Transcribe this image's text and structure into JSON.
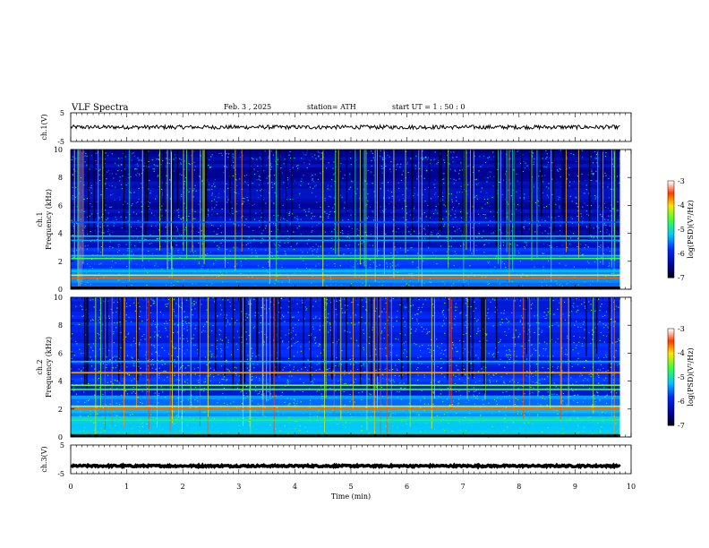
{
  "header": {
    "title": "VLF  Spectra",
    "date": "Feb. 3  , 2025",
    "station": "station= ATH",
    "start": "start  UT  =   1 : 50 : 0"
  },
  "chart_data": [
    {
      "type": "line",
      "name": "ch1-waveform",
      "ylabel": "ch.1(V)",
      "ylim": [
        -5,
        5
      ],
      "yticks": [
        "5",
        "-5"
      ],
      "xlim": [
        0,
        10
      ],
      "approx_level": 0.0,
      "x_end": 9.8
    },
    {
      "type": "heatmap",
      "name": "ch1-spectrogram",
      "ylabel": "ch.1\nFrequency  (kHz)",
      "ylim": [
        0,
        10
      ],
      "yticks": [
        "0",
        "2",
        "4",
        "6",
        "8",
        "10"
      ],
      "xlim": [
        0,
        10
      ],
      "x_end": 9.8,
      "colorbar": {
        "label": "log(PSD)(V²/Hz)",
        "range": [
          -7,
          -3
        ],
        "ticks": [
          "-3",
          "-4",
          "-5",
          "-6",
          "-7"
        ]
      },
      "bands_khz": [
        {
          "freq": 0.8,
          "level": -3.6
        },
        {
          "freq": 1.0,
          "level": -4.0
        },
        {
          "freq": 1.3,
          "level": -5.2
        },
        {
          "freq": 2.2,
          "level": -4.6
        },
        {
          "freq": 2.4,
          "level": -5.0
        },
        {
          "freq": 3.5,
          "level": -5.3
        },
        {
          "freq": 3.8,
          "level": -5.0
        },
        {
          "freq": 4.8,
          "level": -5.6
        }
      ]
    },
    {
      "type": "heatmap",
      "name": "ch2-spectrogram",
      "ylabel": "ch.2\nFrequency  (kHz)",
      "ylim": [
        0,
        10
      ],
      "yticks": [
        "0",
        "2",
        "4",
        "6",
        "8",
        "10"
      ],
      "xlim": [
        0,
        10
      ],
      "x_end": 9.8,
      "colorbar": {
        "label": "log(PSD)(V²/Hz)",
        "range": [
          -7,
          -3
        ],
        "ticks": [
          "-3",
          "-4",
          "-5",
          "-6",
          "-7"
        ]
      },
      "bands_khz": [
        {
          "freq": 1.2,
          "level": -4.8
        },
        {
          "freq": 2.0,
          "level": -3.6
        },
        {
          "freq": 2.2,
          "level": -4.0
        },
        {
          "freq": 3.4,
          "level": -4.6
        },
        {
          "freq": 3.7,
          "level": -4.4
        },
        {
          "freq": 4.6,
          "level": -3.8
        },
        {
          "freq": 5.4,
          "level": -5.2
        }
      ]
    },
    {
      "type": "line",
      "name": "ch3-waveform",
      "ylabel": "ch.3(V)",
      "ylim": [
        -5,
        5
      ],
      "yticks": [
        "5",
        "-5"
      ],
      "xlim": [
        0,
        10
      ],
      "approx_level": -2.3,
      "x_end": 9.8,
      "xlabel": "Time  (min)",
      "xticks": [
        "0",
        "1",
        "2",
        "3",
        "4",
        "5",
        "6",
        "7",
        "8",
        "9",
        "10"
      ]
    }
  ]
}
